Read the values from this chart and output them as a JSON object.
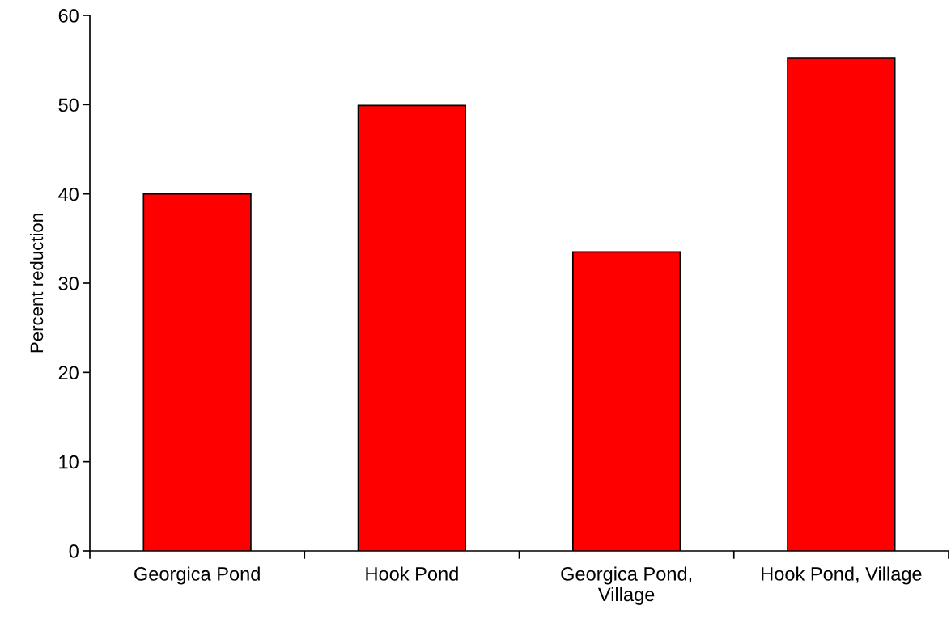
{
  "chart_data": {
    "type": "bar",
    "ylabel": "Percent reduction",
    "categories": [
      "Georgica Pond",
      "Hook Pond",
      "Georgica Pond,\nVillage",
      "Hook Pond, Village"
    ],
    "values": [
      40,
      49.9,
      33.5,
      55.2
    ],
    "color": "#ff0000",
    "ylim": [
      0,
      60
    ],
    "yticks": [
      0,
      10,
      20,
      30,
      40,
      50,
      60
    ],
    "grid": false,
    "legend": false
  }
}
